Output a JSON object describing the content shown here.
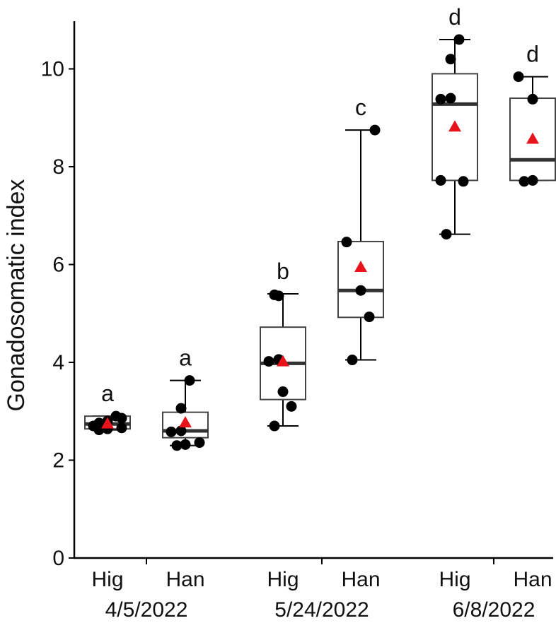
{
  "chart_data": {
    "type": "box",
    "title": "",
    "xlabel": "",
    "ylabel": "Gonadosomatic index",
    "ylim": [
      0,
      11
    ],
    "yticks": [
      "0",
      "2",
      "4",
      "6",
      "8",
      "10"
    ],
    "grid": false,
    "legend": "none",
    "colors": {
      "box_fill": "#ffffff",
      "outline": "#000000",
      "median": "#333333",
      "points": "#000000",
      "mean_marker": "#e8141b"
    },
    "groups": [
      {
        "label": "4/5/2022",
        "boxes": [
          {
            "site": "Hig",
            "letter": "a",
            "min": 2.62,
            "q1": 2.64,
            "median": 2.74,
            "q3": 2.9,
            "max": 2.9,
            "mean": 2.75,
            "points": [
              2.62,
              2.64,
              2.66,
              2.7,
              2.72,
              2.76,
              2.8,
              2.86,
              2.9
            ]
          },
          {
            "site": "Han",
            "letter": "a",
            "min": 2.3,
            "q1": 2.46,
            "median": 2.6,
            "q3": 2.98,
            "max": 3.63,
            "mean": 2.77,
            "points": [
              2.3,
              2.32,
              2.36,
              2.58,
              2.6,
              3.06,
              3.63
            ]
          }
        ]
      },
      {
        "label": "5/24/2022",
        "boxes": [
          {
            "site": "Hig",
            "letter": "b",
            "min": 2.7,
            "q1": 3.24,
            "median": 3.98,
            "q3": 4.72,
            "max": 5.4,
            "mean": 4.02,
            "points": [
              2.7,
              3.1,
              3.4,
              4.02,
              4.06,
              5.36,
              5.38
            ]
          },
          {
            "site": "Han",
            "letter": "c",
            "min": 4.05,
            "q1": 4.92,
            "median": 5.47,
            "q3": 6.47,
            "max": 8.75,
            "mean": 5.95,
            "points": [
              4.05,
              4.93,
              5.47,
              6.46,
              8.75
            ]
          }
        ]
      },
      {
        "label": "6/8/2022",
        "boxes": [
          {
            "site": "Hig",
            "letter": "d",
            "min": 6.62,
            "q1": 7.72,
            "median": 9.28,
            "q3": 9.9,
            "max": 10.6,
            "mean": 8.82,
            "points": [
              6.62,
              7.7,
              7.72,
              9.38,
              9.4,
              10.2,
              10.6
            ]
          },
          {
            "site": "Han",
            "letter": "d",
            "min": 7.72,
            "q1": 7.72,
            "median": 8.14,
            "q3": 9.4,
            "max": 9.84,
            "mean": 8.57,
            "points": [
              7.7,
              7.72,
              9.38,
              9.84
            ]
          }
        ]
      }
    ]
  }
}
